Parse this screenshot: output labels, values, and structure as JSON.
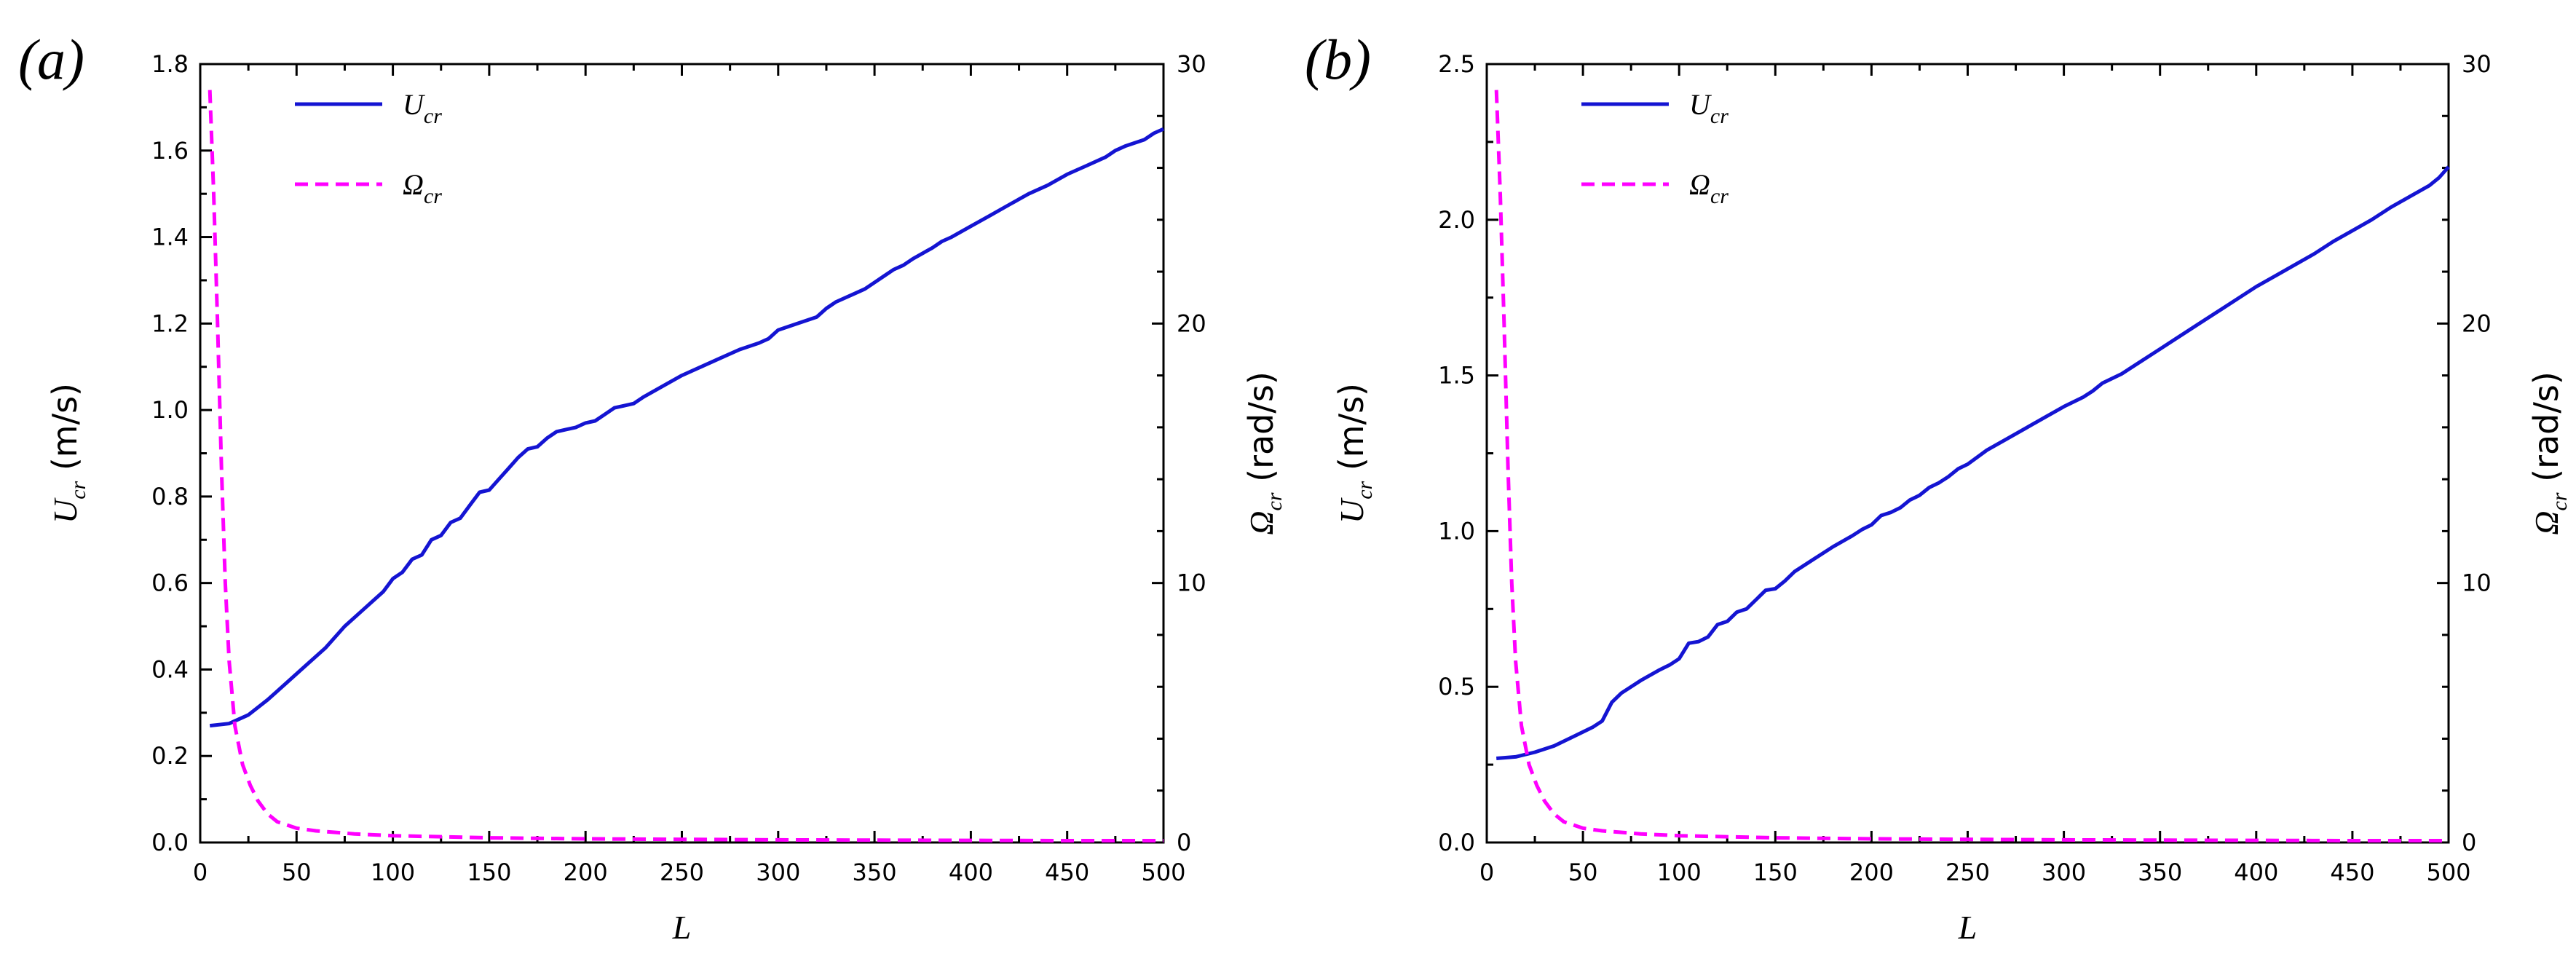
{
  "chart_data": [
    {
      "type": "line",
      "panel_label": "(a)",
      "xlabel": "L",
      "ylabel_left": {
        "sym": "U",
        "sub": "cr",
        "unit": "(m/s)"
      },
      "ylabel_right": {
        "sym": "Ω",
        "sub": "cr",
        "unit": "(rad/s)"
      },
      "xlim": [
        0,
        500
      ],
      "ylim_left": [
        0,
        1.8
      ],
      "ylim_right": [
        0,
        30
      ],
      "x_ticks": [
        "0",
        "50",
        "100",
        "150",
        "200",
        "250",
        "300",
        "350",
        "400",
        "450",
        "500"
      ],
      "y_ticks_left": [
        "0.0",
        "0.2",
        "0.4",
        "0.6",
        "0.8",
        "1.0",
        "1.2",
        "1.4",
        "1.6",
        "1.8"
      ],
      "y_ticks_right": [
        "0",
        "10",
        "20",
        "30"
      ],
      "legend": [
        {
          "sym": "U",
          "sub": "cr",
          "color": "#1414d2",
          "style": "solid"
        },
        {
          "sym": "Ω",
          "sub": "cr",
          "color": "#ff00ff",
          "style": "dashed"
        }
      ],
      "series": [
        {
          "name": "U_cr",
          "axis": "left",
          "color": "#1414d2",
          "dash": "solid",
          "x": [
            5,
            15,
            25,
            35,
            45,
            55,
            65,
            75,
            85,
            95,
            100,
            105,
            110,
            115,
            120,
            125,
            130,
            135,
            140,
            145,
            150,
            155,
            160,
            165,
            170,
            175,
            180,
            185,
            190,
            195,
            200,
            205,
            210,
            215,
            220,
            225,
            230,
            240,
            250,
            260,
            270,
            280,
            290,
            295,
            300,
            310,
            320,
            325,
            330,
            340,
            345,
            350,
            355,
            360,
            365,
            370,
            380,
            385,
            390,
            400,
            410,
            420,
            430,
            440,
            450,
            460,
            470,
            475,
            480,
            490,
            495,
            500
          ],
          "values": [
            0.27,
            0.275,
            0.295,
            0.33,
            0.37,
            0.41,
            0.45,
            0.5,
            0.54,
            0.58,
            0.61,
            0.625,
            0.655,
            0.665,
            0.7,
            0.71,
            0.74,
            0.75,
            0.78,
            0.81,
            0.815,
            0.84,
            0.865,
            0.89,
            0.91,
            0.915,
            0.935,
            0.95,
            0.955,
            0.96,
            0.97,
            0.975,
            0.99,
            1.005,
            1.01,
            1.015,
            1.03,
            1.055,
            1.08,
            1.1,
            1.12,
            1.14,
            1.155,
            1.165,
            1.185,
            1.2,
            1.215,
            1.235,
            1.25,
            1.27,
            1.28,
            1.295,
            1.31,
            1.325,
            1.335,
            1.35,
            1.375,
            1.39,
            1.4,
            1.425,
            1.45,
            1.475,
            1.5,
            1.52,
            1.545,
            1.565,
            1.585,
            1.6,
            1.61,
            1.625,
            1.64,
            1.65
          ]
        },
        {
          "name": "Ω_cr",
          "axis": "right",
          "color": "#ff00ff",
          "dash": "dashed",
          "x": [
            5,
            7,
            9,
            11,
            13,
            15,
            18,
            22,
            26,
            30,
            35,
            40,
            50,
            60,
            80,
            100,
            150,
            200,
            250,
            300,
            350,
            400,
            450,
            500
          ],
          "values": [
            29.0,
            25.0,
            20.0,
            14.5,
            10.0,
            7.0,
            4.5,
            3.0,
            2.2,
            1.6,
            1.1,
            0.8,
            0.55,
            0.45,
            0.33,
            0.26,
            0.18,
            0.14,
            0.12,
            0.1,
            0.09,
            0.08,
            0.07,
            0.07
          ]
        }
      ]
    },
    {
      "type": "line",
      "panel_label": "(b)",
      "xlabel": "L",
      "ylabel_left": {
        "sym": "U",
        "sub": "cr",
        "unit": "(m/s)"
      },
      "ylabel_right": {
        "sym": "Ω",
        "sub": "cr",
        "unit": "(rad/s)"
      },
      "xlim": [
        0,
        500
      ],
      "ylim_left": [
        0,
        2.5
      ],
      "ylim_right": [
        0,
        30
      ],
      "x_ticks": [
        "0",
        "50",
        "100",
        "150",
        "200",
        "250",
        "300",
        "350",
        "400",
        "450",
        "500"
      ],
      "y_ticks_left": [
        "0.0",
        "0.5",
        "1.0",
        "1.5",
        "2.0",
        "2.5"
      ],
      "y_ticks_right": [
        "0",
        "10",
        "20",
        "30"
      ],
      "legend": [
        {
          "sym": "U",
          "sub": "cr",
          "color": "#1414d2",
          "style": "solid"
        },
        {
          "sym": "Ω",
          "sub": "cr",
          "color": "#ff00ff",
          "style": "dashed"
        }
      ],
      "series": [
        {
          "name": "U_cr",
          "axis": "left",
          "color": "#1414d2",
          "dash": "solid",
          "x": [
            5,
            15,
            25,
            35,
            45,
            55,
            60,
            65,
            70,
            80,
            90,
            95,
            100,
            105,
            110,
            115,
            120,
            125,
            130,
            135,
            140,
            145,
            150,
            155,
            160,
            170,
            180,
            190,
            195,
            200,
            205,
            210,
            215,
            220,
            225,
            230,
            235,
            240,
            245,
            250,
            260,
            270,
            280,
            290,
            300,
            310,
            315,
            320,
            330,
            340,
            350,
            360,
            370,
            380,
            390,
            400,
            410,
            420,
            430,
            440,
            450,
            460,
            470,
            480,
            490,
            495,
            500
          ],
          "values": [
            0.27,
            0.275,
            0.29,
            0.31,
            0.34,
            0.37,
            0.39,
            0.45,
            0.48,
            0.52,
            0.555,
            0.57,
            0.59,
            0.64,
            0.645,
            0.66,
            0.7,
            0.71,
            0.74,
            0.75,
            0.78,
            0.81,
            0.815,
            0.84,
            0.87,
            0.91,
            0.95,
            0.985,
            1.005,
            1.02,
            1.05,
            1.06,
            1.075,
            1.1,
            1.115,
            1.14,
            1.155,
            1.175,
            1.2,
            1.215,
            1.26,
            1.295,
            1.33,
            1.365,
            1.4,
            1.43,
            1.45,
            1.475,
            1.505,
            1.545,
            1.585,
            1.625,
            1.665,
            1.705,
            1.745,
            1.785,
            1.82,
            1.855,
            1.89,
            1.93,
            1.965,
            2.0,
            2.04,
            2.075,
            2.11,
            2.135,
            2.17
          ]
        },
        {
          "name": "Ω_cr",
          "axis": "right",
          "color": "#ff00ff",
          "dash": "dashed",
          "x": [
            5,
            7,
            9,
            11,
            13,
            15,
            18,
            22,
            26,
            30,
            35,
            40,
            50,
            60,
            80,
            100,
            150,
            200,
            250,
            300,
            350,
            400,
            450,
            500
          ],
          "values": [
            29.0,
            25.0,
            20.0,
            14.5,
            10.0,
            7.0,
            4.5,
            3.0,
            2.2,
            1.6,
            1.1,
            0.8,
            0.55,
            0.45,
            0.33,
            0.26,
            0.18,
            0.14,
            0.12,
            0.1,
            0.09,
            0.08,
            0.07,
            0.07
          ]
        }
      ]
    }
  ]
}
